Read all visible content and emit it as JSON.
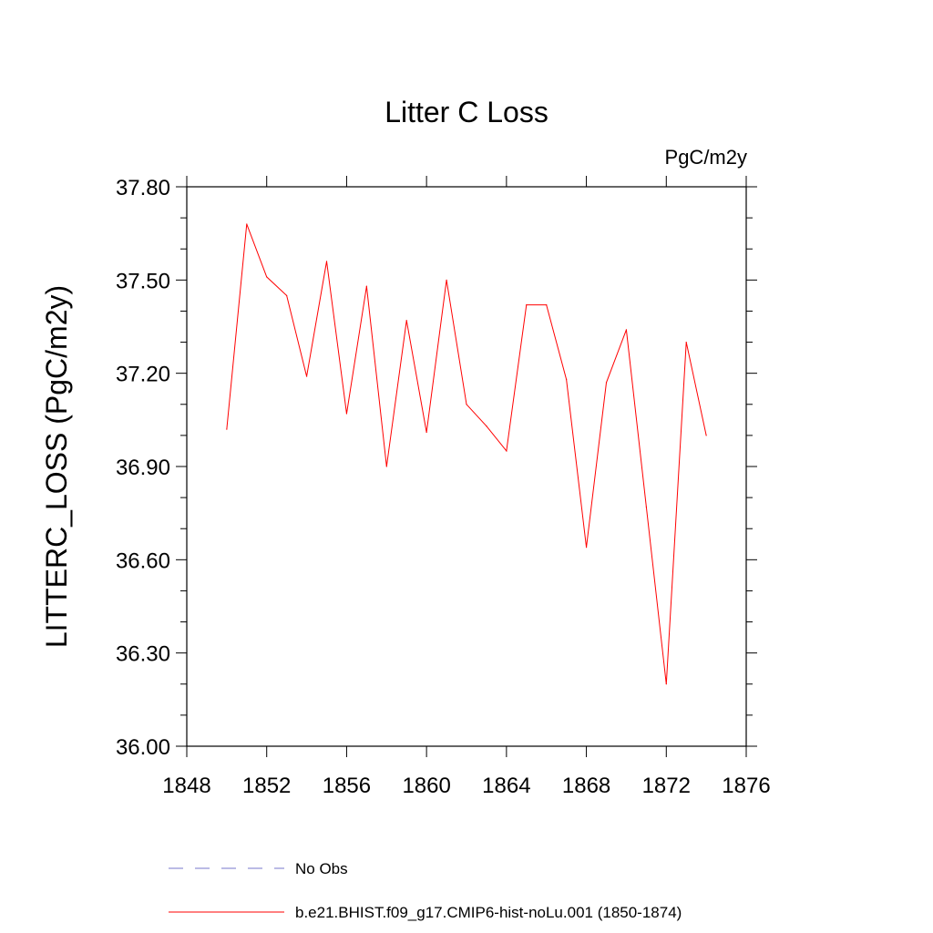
{
  "chart_data": {
    "type": "line",
    "title": "Litter C Loss",
    "units_label": "PgC/m2y",
    "xlabel": "",
    "ylabel": "LITTERC_LOSS  (PgC/m2y)",
    "xlim": [
      1848,
      1876
    ],
    "ylim": [
      36.0,
      37.8
    ],
    "x_ticks": [
      "1848",
      "1852",
      "1856",
      "1860",
      "1864",
      "1868",
      "1872",
      "1876"
    ],
    "y_ticks": [
      "36.00",
      "36.30",
      "36.60",
      "36.90",
      "37.20",
      "37.50",
      "37.80"
    ],
    "grid": false,
    "series": [
      {
        "name": "b.e21.BHIST.f09_g17.CMIP6-hist-noLu.001 (1850-1874)",
        "color": "#ff0000",
        "style": "solid",
        "x": [
          1850,
          1851,
          1852,
          1853,
          1854,
          1855,
          1856,
          1857,
          1858,
          1859,
          1860,
          1861,
          1862,
          1863,
          1864,
          1865,
          1866,
          1867,
          1868,
          1869,
          1870,
          1871,
          1872,
          1873,
          1874
        ],
        "values": [
          37.02,
          37.68,
          37.51,
          37.45,
          37.19,
          37.56,
          37.07,
          37.48,
          36.9,
          37.37,
          37.01,
          37.5,
          37.1,
          37.03,
          36.95,
          37.42,
          37.42,
          37.18,
          36.64,
          37.17,
          37.34,
          36.77,
          36.2,
          37.3,
          37.0
        ]
      }
    ],
    "legend": {
      "placement": "bottom-left",
      "entries": [
        {
          "label": "No Obs",
          "color": "#7777cc",
          "style": "dashed"
        },
        {
          "label": "b.e21.BHIST.f09_g17.CMIP6-hist-noLu.001 (1850-1874)",
          "color": "#ff0000",
          "style": "solid"
        }
      ]
    }
  }
}
